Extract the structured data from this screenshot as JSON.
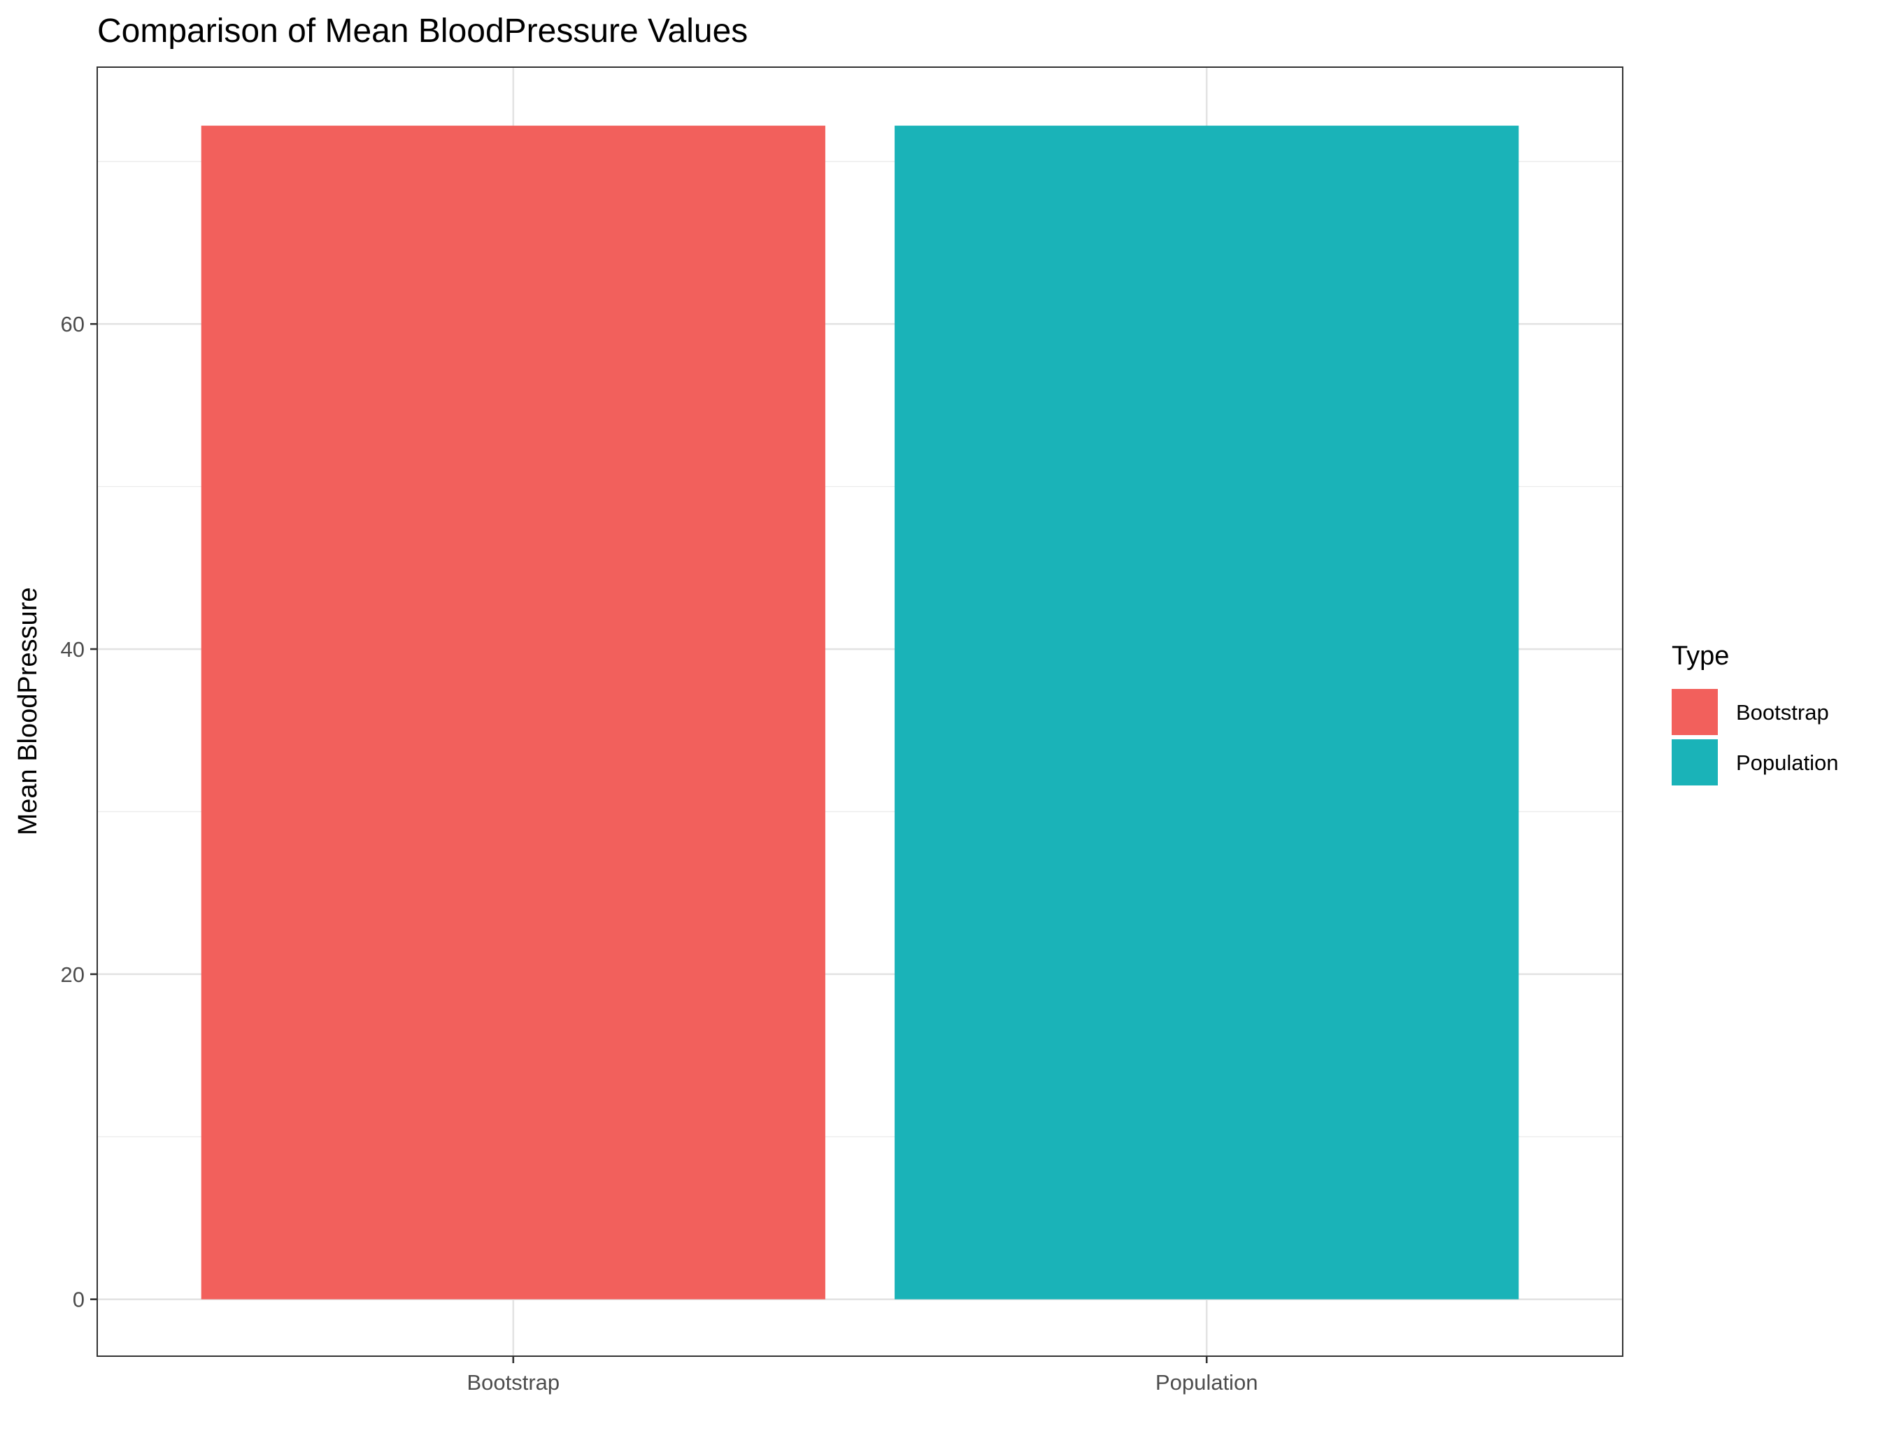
{
  "chart_data": {
    "type": "bar",
    "title": "Comparison of Mean BloodPressure Values",
    "xlabel": "",
    "ylabel": "Mean BloodPressure",
    "categories": [
      "Bootstrap",
      "Population"
    ],
    "values": [
      72.2,
      72.2
    ],
    "colors": [
      "#F2605C",
      "#1AB3B8"
    ],
    "ylim": [
      -3.5,
      75.8
    ],
    "yticks": [
      0,
      20,
      40,
      60
    ],
    "ytick_labels": [
      "0",
      "20",
      "40",
      "60"
    ],
    "grid": true,
    "legend": {
      "title": "Type",
      "position": "right",
      "entries": [
        "Bootstrap",
        "Population"
      ]
    }
  }
}
